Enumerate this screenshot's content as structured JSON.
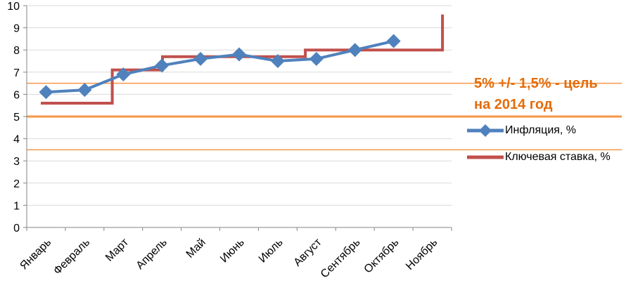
{
  "chart_data": {
    "type": "line",
    "title": "",
    "xlabel": "",
    "ylabel": "",
    "ylim": [
      0,
      10
    ],
    "y_ticks": [
      "0",
      "1",
      "2",
      "3",
      "4",
      "5",
      "6",
      "7",
      "8",
      "9",
      "10"
    ],
    "categories": [
      "Январь",
      "Февраль",
      "Март",
      "Апрель",
      "Май",
      "Июнь",
      "Июль",
      "Август",
      "Сентябрь",
      "Октябрь",
      "Ноябрь"
    ],
    "grid": true,
    "legend_position": "right",
    "series": [
      {
        "name": "Инфляция, %",
        "type": "line-markers",
        "color": "#4f81bd",
        "values": [
          6.1,
          6.2,
          6.9,
          7.3,
          7.6,
          7.8,
          7.5,
          7.6,
          8.0,
          8.4,
          null
        ]
      },
      {
        "name": "Ключевая ставка, %",
        "type": "step",
        "color": "#c0504d",
        "steps": [
          {
            "x": 0,
            "y": 5.6
          },
          {
            "x": 1.85,
            "y": 5.6
          },
          {
            "x": 1.85,
            "y": 7.1
          },
          {
            "x": 3.15,
            "y": 7.1
          },
          {
            "x": 3.15,
            "y": 7.7
          },
          {
            "x": 6.85,
            "y": 7.7
          },
          {
            "x": 6.85,
            "y": 8.0
          },
          {
            "x": 10.4,
            "y": 8.0
          },
          {
            "x": 10.4,
            "y": 9.6
          }
        ]
      }
    ],
    "reference_lines": [
      {
        "y": 6.5,
        "color": "#f79646",
        "role": "upper"
      },
      {
        "y": 5.0,
        "color": "#f79646",
        "role": "target"
      },
      {
        "y": 3.5,
        "color": "#f79646",
        "role": "lower"
      }
    ],
    "annotation": {
      "line1": "5% +/- 1,5% - цель",
      "line2": "на 2014 год",
      "color": "#e46c0a"
    }
  }
}
